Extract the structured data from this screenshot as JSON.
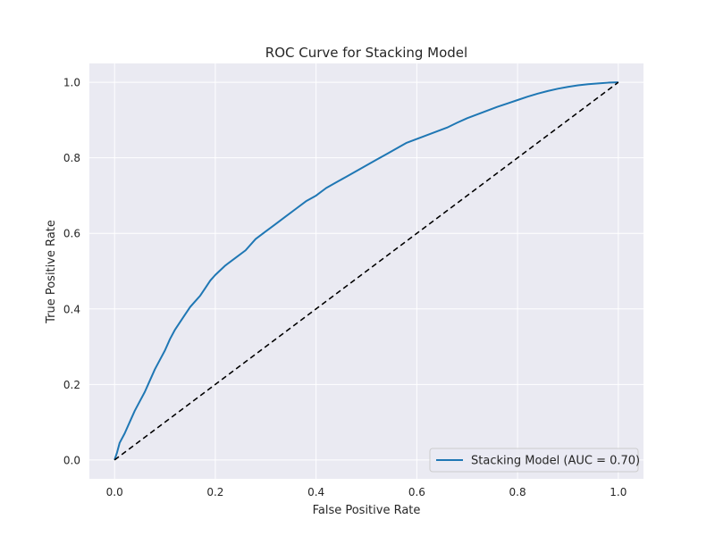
{
  "chart_data": {
    "type": "line",
    "title": "ROC Curve for Stacking Model",
    "xlabel": "False Positive Rate",
    "ylabel": "True Positive Rate",
    "xlim": [
      -0.05,
      1.05
    ],
    "ylim": [
      -0.05,
      1.05
    ],
    "xticks": [
      0.0,
      0.2,
      0.4,
      0.6,
      0.8,
      1.0
    ],
    "yticks": [
      0.0,
      0.2,
      0.4,
      0.6,
      0.8,
      1.0
    ],
    "xtick_labels": [
      "0.0",
      "0.2",
      "0.4",
      "0.6",
      "0.8",
      "1.0"
    ],
    "ytick_labels": [
      "0.0",
      "0.2",
      "0.4",
      "0.6",
      "0.8",
      "1.0"
    ],
    "grid": true,
    "legend_position": "lower-right",
    "series": [
      {
        "name": "Stacking Model (AUC = 0.70)",
        "color": "#1f77b4",
        "style": "solid",
        "x": [
          0.0,
          0.005,
          0.01,
          0.02,
          0.03,
          0.04,
          0.05,
          0.06,
          0.07,
          0.08,
          0.09,
          0.1,
          0.11,
          0.12,
          0.13,
          0.14,
          0.15,
          0.16,
          0.17,
          0.18,
          0.19,
          0.2,
          0.22,
          0.24,
          0.26,
          0.28,
          0.3,
          0.32,
          0.34,
          0.36,
          0.38,
          0.4,
          0.42,
          0.44,
          0.46,
          0.48,
          0.5,
          0.52,
          0.54,
          0.56,
          0.58,
          0.6,
          0.62,
          0.64,
          0.66,
          0.68,
          0.7,
          0.72,
          0.74,
          0.76,
          0.78,
          0.8,
          0.82,
          0.84,
          0.86,
          0.88,
          0.9,
          0.92,
          0.94,
          0.96,
          0.98,
          1.0
        ],
        "y": [
          0.0,
          0.02,
          0.045,
          0.07,
          0.1,
          0.13,
          0.155,
          0.18,
          0.21,
          0.24,
          0.265,
          0.29,
          0.32,
          0.345,
          0.365,
          0.385,
          0.405,
          0.42,
          0.435,
          0.455,
          0.475,
          0.49,
          0.515,
          0.535,
          0.555,
          0.585,
          0.605,
          0.625,
          0.645,
          0.665,
          0.685,
          0.7,
          0.72,
          0.735,
          0.75,
          0.765,
          0.78,
          0.795,
          0.81,
          0.825,
          0.84,
          0.85,
          0.86,
          0.87,
          0.88,
          0.893,
          0.905,
          0.915,
          0.925,
          0.935,
          0.944,
          0.953,
          0.962,
          0.97,
          0.977,
          0.983,
          0.988,
          0.992,
          0.995,
          0.997,
          0.999,
          1.0
        ]
      },
      {
        "name": "",
        "color": "#000000",
        "style": "dashed",
        "x": [
          0.0,
          1.0
        ],
        "y": [
          0.0,
          1.0
        ]
      }
    ]
  }
}
